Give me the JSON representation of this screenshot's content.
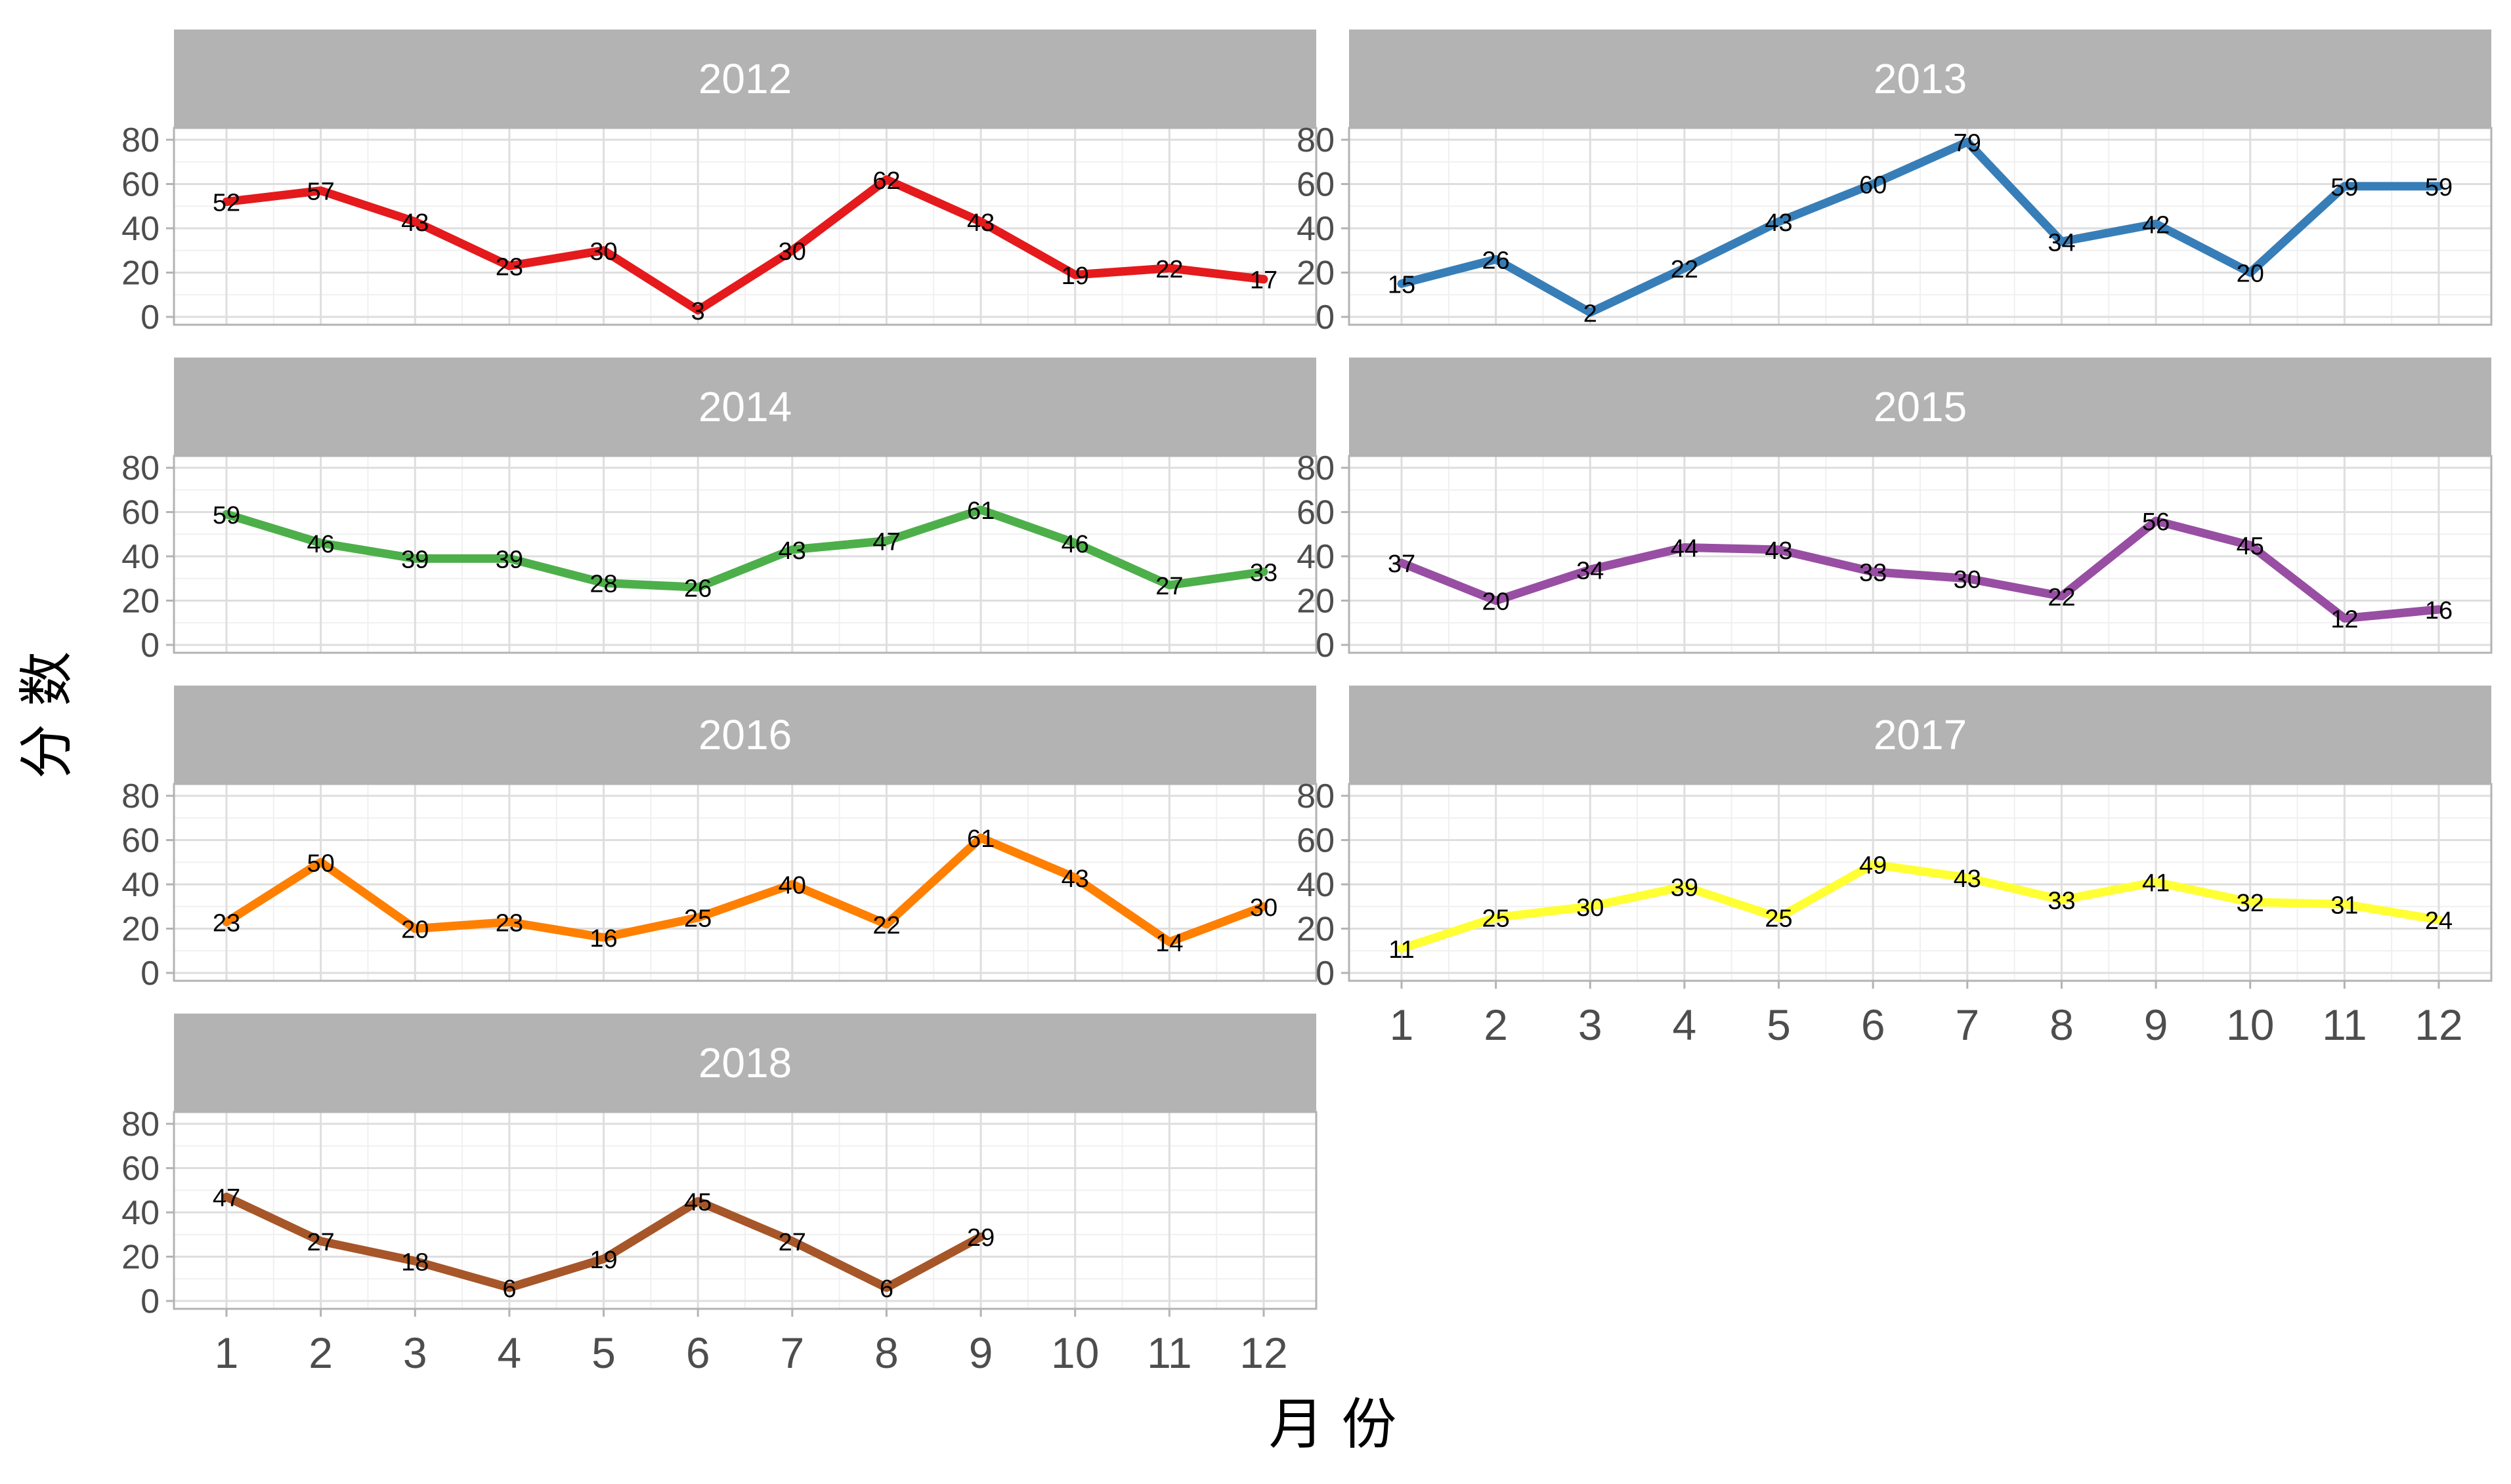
{
  "chart_data": {
    "type": "line",
    "xlabel": "月 份",
    "ylabel": "分 数",
    "x": [
      1,
      2,
      3,
      4,
      5,
      6,
      7,
      8,
      9,
      10,
      11,
      12
    ],
    "ylim": [
      0,
      80
    ],
    "yticks": [
      0,
      20,
      40,
      60,
      80
    ],
    "grid": true,
    "legend": "none",
    "facets": [
      {
        "title": "2012",
        "color": "#E41A1C",
        "values": [
          52,
          57,
          43,
          23,
          30,
          3,
          30,
          62,
          43,
          19,
          22,
          17
        ]
      },
      {
        "title": "2013",
        "color": "#377EB8",
        "values": [
          15,
          26,
          2,
          22,
          43,
          60,
          79,
          34,
          42,
          20,
          59,
          59
        ]
      },
      {
        "title": "2014",
        "color": "#4DAF4A",
        "values": [
          59,
          46,
          39,
          39,
          28,
          26,
          43,
          47,
          61,
          46,
          27,
          33
        ]
      },
      {
        "title": "2015",
        "color": "#984EA3",
        "values": [
          37,
          20,
          34,
          44,
          43,
          33,
          30,
          22,
          56,
          45,
          12,
          16
        ]
      },
      {
        "title": "2016",
        "color": "#FF7F00",
        "values": [
          23,
          50,
          20,
          23,
          16,
          25,
          40,
          22,
          61,
          43,
          14,
          30
        ]
      },
      {
        "title": "2017",
        "color": "#FFFF33",
        "values": [
          11,
          25,
          30,
          39,
          25,
          49,
          43,
          33,
          41,
          32,
          31,
          24
        ]
      },
      {
        "title": "2018",
        "color": "#A65628",
        "values": [
          47,
          27,
          18,
          6,
          19,
          45,
          27,
          6,
          29
        ]
      }
    ]
  }
}
